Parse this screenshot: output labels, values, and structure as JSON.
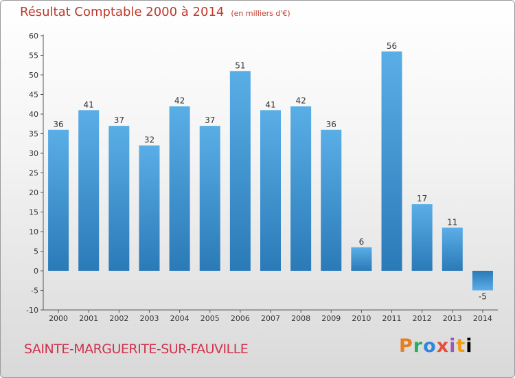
{
  "header": {
    "title": "Résultat Comptable 2000 à 2014",
    "subtitle": "(en milliers d'€)"
  },
  "footer": {
    "commune": "SAINTE-MARGUERITE-SUR-FAUVILLE",
    "logo_text": "Proxiti"
  },
  "colors": {
    "bar_top": "#5aaee6",
    "bar_bottom": "#2a7ab8",
    "title": "#c0392b",
    "commune": "#d0314d"
  },
  "chart_data": {
    "type": "bar",
    "title": "Résultat Comptable 2000 à 2014",
    "subtitle": "(en milliers d'€)",
    "categories": [
      "2000",
      "2001",
      "2002",
      "2003",
      "2004",
      "2005",
      "2006",
      "2007",
      "2008",
      "2009",
      "2010",
      "2011",
      "2012",
      "2013",
      "2014"
    ],
    "values": [
      36,
      41,
      37,
      32,
      42,
      37,
      51,
      41,
      42,
      36,
      6,
      56,
      17,
      11,
      -5
    ],
    "data_labels": [
      "36",
      "41",
      "37",
      "32",
      "42",
      "37",
      "51",
      "41",
      "42",
      "36",
      "6",
      "56",
      "17",
      "11",
      "-5"
    ],
    "ylim": [
      -10,
      60
    ],
    "yticks": [
      -10,
      -5,
      0,
      5,
      10,
      15,
      20,
      25,
      30,
      35,
      40,
      45,
      50,
      55,
      60
    ],
    "grid": false,
    "xlabel": "",
    "ylabel": ""
  }
}
